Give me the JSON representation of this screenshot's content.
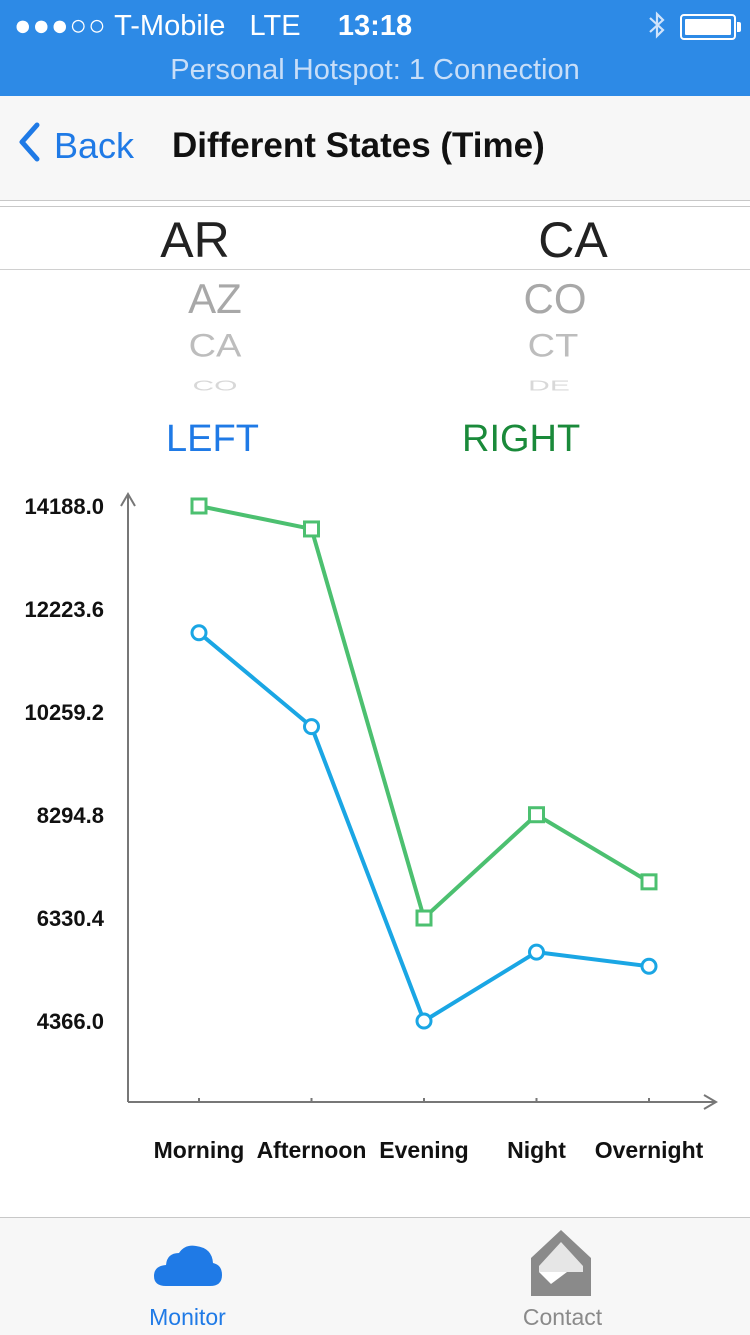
{
  "status": {
    "signal": "●●●○○",
    "carrier": "T-Mobile",
    "network": "LTE",
    "time": "13:18",
    "hotspot": "Personal Hotspot: 1 Connection"
  },
  "nav": {
    "back_label": "Back",
    "title": "Different States (Time)"
  },
  "pickers": {
    "left": {
      "selected": "AR",
      "below": [
        "AZ",
        "CA",
        "CO"
      ]
    },
    "right": {
      "selected": "CA",
      "below": [
        "CO",
        "CT",
        "DE"
      ]
    }
  },
  "labels": {
    "left": "LEFT",
    "right": "RIGHT"
  },
  "colors": {
    "left": "#1aa6e4",
    "right": "#4cc070",
    "accent": "#1f7ae6"
  },
  "chart_data": {
    "type": "line",
    "categories": [
      "Morning",
      "Afternoon",
      "Evening",
      "Night",
      "Overnight"
    ],
    "yticks": [
      "14188.0",
      "12223.6",
      "10259.2",
      "8294.8",
      "6330.4",
      "4366.0"
    ],
    "ylim": [
      4366.0,
      14188.0
    ],
    "series": [
      {
        "name": "RIGHT",
        "marker": "square",
        "values": [
          14188,
          13750,
          6330,
          8300,
          7020
        ]
      },
      {
        "name": "LEFT",
        "marker": "circle",
        "values": [
          11770,
          9980,
          4366,
          5680,
          5410
        ]
      }
    ]
  },
  "tabs": [
    {
      "label": "Monitor",
      "icon": "cloud-icon",
      "active": true
    },
    {
      "label": "Contact",
      "icon": "envelope-icon",
      "active": false
    }
  ]
}
